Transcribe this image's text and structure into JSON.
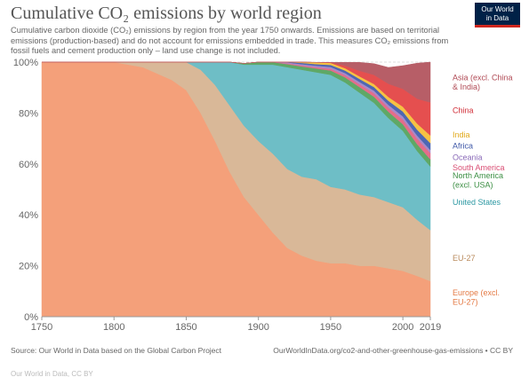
{
  "header": {
    "title": "Cumulative CO₂ emissions by world region",
    "subtitle": "Cumulative carbon dioxide (CO₂) emissions by region from the year 1750 onwards. Emissions are based on territorial emissions (production-based) and do not account for emissions embedded in trade. This measures CO₂ emissions from fossil fuels and cement production only – land use change is not included.",
    "logo_line1": "Our World",
    "logo_line2": "in Data"
  },
  "footer": {
    "source": "Source: Our World in Data based on the Global Carbon Project",
    "url": "OurWorldInData.org/co2-and-other-greenhouse-gas-emissions • CC BY",
    "credit": "Our World in Data, CC BY"
  },
  "chart_data": {
    "type": "area",
    "stacked": true,
    "percent": true,
    "title": "Cumulative CO₂ emissions by world region",
    "xlabel": "",
    "ylabel": "",
    "xlim": [
      1750,
      2019
    ],
    "ylim": [
      0,
      100
    ],
    "x_ticks": [
      "1750",
      "1800",
      "1850",
      "1900",
      "1950",
      "2000",
      "2019"
    ],
    "y_ticks": [
      "0%",
      "20%",
      "40%",
      "60%",
      "80%",
      "100%"
    ],
    "grid": true,
    "x": [
      1750,
      1800,
      1820,
      1840,
      1850,
      1860,
      1870,
      1880,
      1890,
      1900,
      1910,
      1920,
      1930,
      1940,
      1950,
      1960,
      1970,
      1980,
      1990,
      2000,
      2010,
      2019
    ],
    "series": [
      {
        "name": "Europe (excl. EU-27)",
        "color": "#f4a07a",
        "values": [
          100,
          100,
          98,
          93,
          89,
          80,
          69,
          57,
          47,
          40,
          33,
          27,
          24,
          22,
          21,
          21,
          20,
          20,
          19,
          18,
          16,
          14
        ]
      },
      {
        "name": "EU-27",
        "color": "#d9b898",
        "values": [
          0,
          0,
          2,
          7,
          11,
          17,
          22,
          26,
          28,
          29,
          31,
          31,
          31,
          32,
          30,
          29,
          28,
          27,
          26,
          25,
          22,
          20
        ]
      },
      {
        "name": "United States",
        "color": "#6ebec6",
        "values": [
          0,
          0,
          0,
          0,
          0,
          3,
          9,
          17,
          24,
          30,
          35,
          40,
          42,
          42,
          44,
          42,
          40,
          37,
          33,
          30,
          27,
          25
        ]
      },
      {
        "name": "North America (excl. USA)",
        "color": "#5fa866",
        "values": [
          0,
          0,
          0,
          0,
          0,
          0,
          0,
          0,
          0.5,
          1,
          1,
          1.2,
          1.3,
          1.5,
          1.7,
          2,
          2.2,
          2.4,
          2.5,
          2.6,
          2.7,
          2.8
        ]
      },
      {
        "name": "South America",
        "color": "#e46d8a",
        "values": [
          0,
          0,
          0,
          0,
          0,
          0,
          0,
          0,
          0,
          0,
          0,
          0.3,
          0.4,
          0.5,
          0.7,
          0.9,
          1.1,
          1.4,
          1.6,
          1.9,
          2.2,
          2.5
        ]
      },
      {
        "name": "Oceania",
        "color": "#a78ac9",
        "values": [
          0,
          0,
          0,
          0,
          0,
          0,
          0,
          0,
          0,
          0,
          0.3,
          0.4,
          0.5,
          0.6,
          0.7,
          0.8,
          0.9,
          1.0,
          1.1,
          1.2,
          1.2,
          1.2
        ]
      },
      {
        "name": "Africa",
        "color": "#4d67b3",
        "values": [
          0,
          0,
          0,
          0,
          0,
          0,
          0,
          0,
          0,
          0,
          0.3,
          0.4,
          0.5,
          0.6,
          0.8,
          1.0,
          1.2,
          1.4,
          1.6,
          1.9,
          2.3,
          2.7
        ]
      },
      {
        "name": "India",
        "color": "#f6c243",
        "values": [
          0,
          0,
          0,
          0,
          0,
          0,
          0,
          0,
          0,
          0.2,
          0.4,
          0.5,
          0.6,
          0.7,
          0.8,
          0.9,
          1.0,
          1.2,
          1.5,
          1.9,
          2.4,
          3.0
        ]
      },
      {
        "name": "China",
        "color": "#e54f4f",
        "values": [
          0,
          0,
          0,
          0,
          0,
          0,
          0,
          0,
          0,
          0,
          0,
          0,
          0,
          0,
          0.2,
          1.0,
          2.2,
          3.6,
          5.2,
          7.0,
          9.8,
          13.0
        ]
      },
      {
        "name": "Asia (excl. China & India)",
        "color": "#b75e67",
        "values": [
          0,
          0,
          0,
          0,
          0,
          0,
          0,
          0,
          0,
          0,
          0,
          0,
          0,
          0,
          0,
          1.3,
          3.3,
          4.4,
          6.4,
          9.1,
          14.0,
          15.8
        ]
      }
    ],
    "legend_labels": [
      {
        "series": "Asia (excl. China & India)",
        "lines": [
          "Asia (excl. China",
          "& India)"
        ],
        "color": "#b04a55"
      },
      {
        "series": "China",
        "lines": [
          "China"
        ],
        "color": "#d2303a"
      },
      {
        "series": "India",
        "lines": [
          "India"
        ],
        "color": "#e1a91a"
      },
      {
        "series": "Africa",
        "lines": [
          "Africa"
        ],
        "color": "#3f58a8"
      },
      {
        "series": "Oceania",
        "lines": [
          "Oceania"
        ],
        "color": "#8a6ab8"
      },
      {
        "series": "South America",
        "lines": [
          "South America"
        ],
        "color": "#d94e74"
      },
      {
        "series": "North America (excl. USA)",
        "lines": [
          "North America",
          "(excl. USA)"
        ],
        "color": "#3c8f44"
      },
      {
        "series": "United States",
        "lines": [
          "United States"
        ],
        "color": "#2c98a3"
      },
      {
        "series": "EU-27",
        "lines": [
          "EU-27"
        ],
        "color": "#b98a5c"
      },
      {
        "series": "Europe (excl. EU-27)",
        "lines": [
          "Europe (excl.",
          "EU-27)"
        ],
        "color": "#e47a45"
      }
    ]
  }
}
